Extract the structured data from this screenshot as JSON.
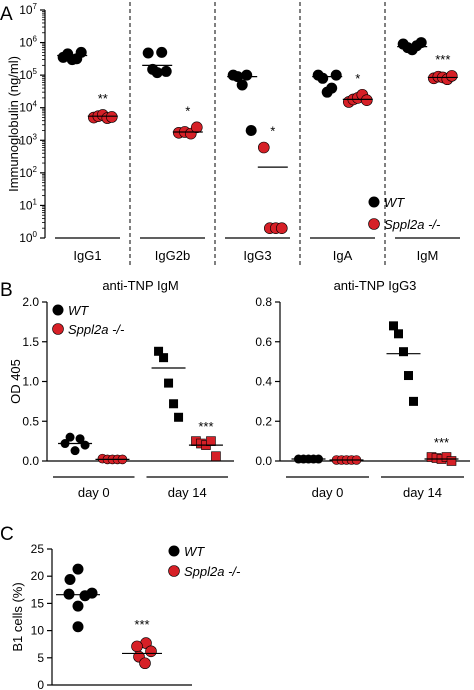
{
  "colors": {
    "wt": "#000000",
    "mut": "#d62027"
  },
  "panel_labels": [
    "A",
    "B",
    "C"
  ],
  "legend": {
    "wt": "WT",
    "mut": "Sppl2a -/-"
  },
  "chart_data": [
    {
      "panel": "A",
      "type": "scatter",
      "ylabel": "Immunoglobulin (ng/ml)",
      "yscale": "log",
      "ylim": [
        1,
        10000000
      ],
      "y_tick_labels": [
        "10^0",
        "10^1",
        "10^2",
        "10^3",
        "10^4",
        "10^5",
        "10^6",
        "10^7"
      ],
      "categories": [
        "IgG1",
        "IgG2b",
        "IgG3",
        "IgA",
        "IgM"
      ],
      "series": [
        {
          "name": "WT",
          "color": "#000000",
          "marker": "circle",
          "points": [
            [
              350000,
              450000,
              300000,
              320000,
              500000
            ],
            [
              480000,
              150000,
              120000,
              500000,
              130000
            ],
            [
              100000,
              90000,
              50000,
              100000,
              2000
            ],
            [
              100000,
              80000,
              30000,
              40000,
              100000
            ],
            [
              900000,
              700000,
              600000,
              800000,
              1000000
            ]
          ],
          "means": [
            400000,
            200000,
            90000,
            90000,
            750000
          ]
        },
        {
          "name": "Sppl2a -/-",
          "color": "#d62027",
          "marker": "circle",
          "points": [
            [
              5000,
              5500,
              6000,
              4800,
              5200
            ],
            [
              1700,
              1800,
              1600,
              2500
            ],
            [
              600,
              2,
              2,
              2
            ],
            [
              15000,
              18000,
              20000,
              25000,
              17000
            ],
            [
              80000,
              90000,
              85000,
              75000,
              95000
            ]
          ],
          "means": [
            5500,
            1800,
            150,
            18000,
            85000
          ]
        }
      ],
      "annotations": [
        "**",
        "*",
        "*",
        "*",
        "***"
      ]
    },
    {
      "panel": "B",
      "type": "scatter",
      "title": "anti-TNP IgM",
      "ylabel": "OD 405",
      "ylim": [
        0,
        2.0
      ],
      "y_tick_labels": [
        "0.0",
        "0.5",
        "1.0",
        "1.5",
        "2.0"
      ],
      "groups": [
        "day 0",
        "day 14"
      ],
      "series": [
        {
          "name": "WT",
          "color": "#000000",
          "points": [
            [
              0.22,
              0.3,
              0.13,
              0.28,
              0.2
            ],
            [
              1.38,
              1.3,
              0.98,
              0.72,
              0.55
            ]
          ],
          "means": [
            0.22,
            1.17
          ]
        },
        {
          "name": "Sppl2a -/-",
          "color": "#d62027",
          "points": [
            [
              0.03,
              0.02,
              0.02,
              0.02,
              0.02
            ],
            [
              0.25,
              0.22,
              0.2,
              0.25,
              0.06
            ]
          ],
          "means": [
            0.02,
            0.2
          ]
        }
      ],
      "annotations": [
        "",
        "***"
      ]
    },
    {
      "panel": "B",
      "type": "scatter",
      "title": "anti-TNP IgG3",
      "ylim": [
        0,
        0.8
      ],
      "y_tick_labels": [
        "0.0",
        "0.2",
        "0.4",
        "0.6",
        "0.8"
      ],
      "groups": [
        "day 0",
        "day 14"
      ],
      "series": [
        {
          "name": "WT",
          "color": "#000000",
          "points": [
            [
              0.01,
              0.01,
              0.01,
              0.01,
              0.01
            ],
            [
              0.68,
              0.64,
              0.55,
              0.43,
              0.3
            ]
          ],
          "means": [
            0.01,
            0.54
          ]
        },
        {
          "name": "Sppl2a -/-",
          "color": "#d62027",
          "points": [
            [
              0.005,
              0.005,
              0.005,
              0.005,
              0.005
            ],
            [
              0.02,
              0.015,
              0.01,
              0.02,
              0.0
            ]
          ],
          "means": [
            0.005,
            0.01
          ]
        }
      ],
      "annotations": [
        "",
        "***"
      ]
    },
    {
      "panel": "C",
      "type": "scatter",
      "ylabel": "B1 cells (%)",
      "ylim": [
        0,
        25
      ],
      "y_tick_labels": [
        "0",
        "5",
        "10",
        "15",
        "20",
        "25"
      ],
      "series": [
        {
          "name": "WT",
          "color": "#000000",
          "points": [
            21.3,
            19.4,
            16.7,
            16.4,
            16.9,
            14.5,
            10.7
          ],
          "mean": 16.6
        },
        {
          "name": "Sppl2a -/-",
          "color": "#d62027",
          "points": [
            7.7,
            7.1,
            6.2,
            5.2,
            4.0
          ],
          "mean": 5.8
        }
      ],
      "annotation": "***"
    }
  ]
}
